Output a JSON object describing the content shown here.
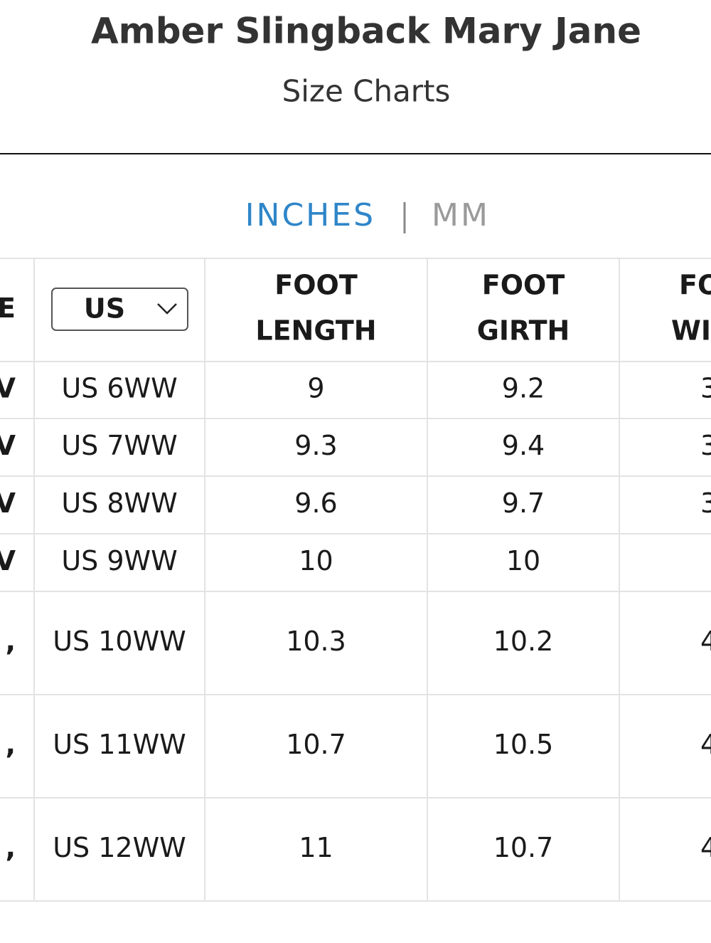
{
  "header": {
    "title": "Amber Slingback Mary Jane",
    "subtitle": "Size Charts"
  },
  "unit_toggle": {
    "options": [
      "INCHES",
      "MM"
    ],
    "active": 0
  },
  "table": {
    "selector": "US",
    "header": [
      [
        "E"
      ],
      null,
      [
        "FOOT",
        "LENGTH"
      ],
      [
        "FOOT",
        "GIRTH"
      ],
      [
        "FO",
        "WI"
      ]
    ],
    "rows": [
      [
        "V",
        "US 6WW",
        "9",
        "9.2",
        "3"
      ],
      [
        "V",
        "US 7WW",
        "9.3",
        "9.4",
        "3"
      ],
      [
        "V",
        "US 8WW",
        "9.6",
        "9.7",
        "3"
      ],
      [
        "V",
        "US 9WW",
        "10",
        "10",
        null
      ],
      [
        ",",
        "US 10WW",
        "10.3",
        "10.2",
        "4"
      ],
      [
        ",",
        "US 11WW",
        "10.7",
        "10.5",
        "4"
      ],
      [
        ",",
        "US 12WW",
        "11",
        "10.7",
        "4"
      ]
    ]
  }
}
